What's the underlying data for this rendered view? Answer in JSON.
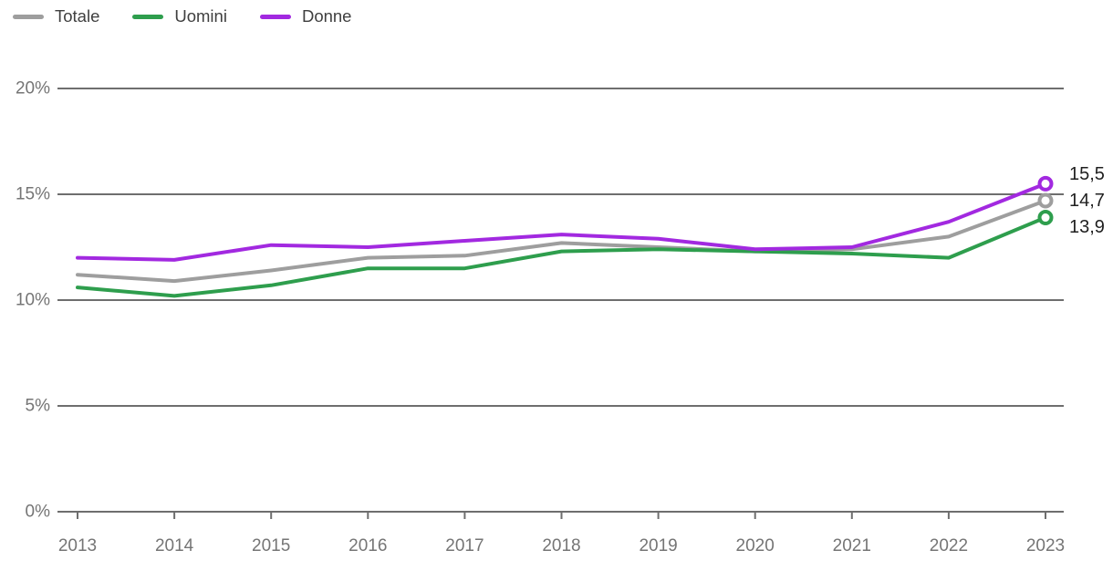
{
  "chart_data": {
    "type": "line",
    "title": "",
    "xlabel": "",
    "ylabel": "",
    "x": [
      "2013",
      "2014",
      "2015",
      "2016",
      "2017",
      "2018",
      "2019",
      "2020",
      "2021",
      "2022",
      "2023"
    ],
    "ylim": [
      0,
      20
    ],
    "grid": true,
    "legend_position": "top-left",
    "y_ticks": {
      "values": [
        0,
        5,
        10,
        15,
        20
      ],
      "labels": [
        "0%",
        "5%",
        "10%",
        "15%",
        "20%"
      ]
    },
    "series": [
      {
        "name": "Totale",
        "color": "#9e9e9e",
        "values": [
          11.2,
          10.9,
          11.4,
          12.0,
          12.1,
          12.7,
          12.5,
          12.3,
          12.4,
          13.0,
          14.7
        ],
        "end_label": "14,7"
      },
      {
        "name": "Uomini",
        "color": "#2e9e4d",
        "values": [
          10.6,
          10.2,
          10.7,
          11.5,
          11.5,
          12.3,
          12.4,
          12.3,
          12.2,
          12.0,
          13.9
        ],
        "end_label": "13,9"
      },
      {
        "name": "Donne",
        "color": "#a229e0",
        "values": [
          12.0,
          11.9,
          12.6,
          12.5,
          12.8,
          13.1,
          12.9,
          12.4,
          12.5,
          13.7,
          15.5
        ],
        "end_label": "15,5"
      }
    ]
  },
  "colors": {
    "gridline": "#6e6e6e",
    "axis_label": "#757575",
    "legend_text": "#3f3f3f",
    "value_label": "#1f1f1f",
    "background": "#ffffff"
  }
}
